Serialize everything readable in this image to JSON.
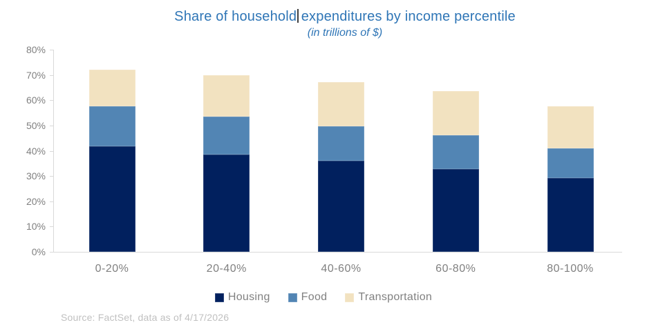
{
  "title": {
    "before_cursor": "Share of household",
    "after_cursor": "expenditures by income percentile",
    "subtitle": "(in trillions of $)"
  },
  "chart_data": {
    "type": "bar",
    "stacked": true,
    "title": "Share of household expenditures by income percentile",
    "subtitle": "(in trillions of $)",
    "categories": [
      "0-20%",
      "20-40%",
      "40-60%",
      "60-80%",
      "80-100%"
    ],
    "series": [
      {
        "name": "Housing",
        "color": "#01205E",
        "values": [
          41.7,
          38.4,
          36.0,
          32.7,
          29.2
        ]
      },
      {
        "name": "Food",
        "color": "#5285B4",
        "values": [
          15.8,
          15.2,
          13.8,
          13.4,
          11.8
        ]
      },
      {
        "name": "Transportation",
        "color": "#F2E2C0",
        "values": [
          14.5,
          16.4,
          17.3,
          17.5,
          16.5
        ]
      }
    ],
    "stack_totals": [
      72.0,
      70.0,
      67.1,
      63.6,
      57.5
    ],
    "xlabel": "",
    "ylabel": "",
    "yticks": [
      "0%",
      "10%",
      "20%",
      "30%",
      "40%",
      "50%",
      "60%",
      "70%",
      "80%"
    ],
    "ylim": [
      0,
      80
    ],
    "grid": false,
    "legend_position": "bottom"
  },
  "source": "Source: FactSet, data as of 4/17/2026",
  "colors": {
    "title_text": "#2E75B6",
    "axis_line": "#D9D9D9",
    "tick_label": "#808080",
    "x_label": "#808080",
    "legend_text": "#808080",
    "source_text": "#C0C0C0",
    "cursor": "#3F3F3F"
  }
}
